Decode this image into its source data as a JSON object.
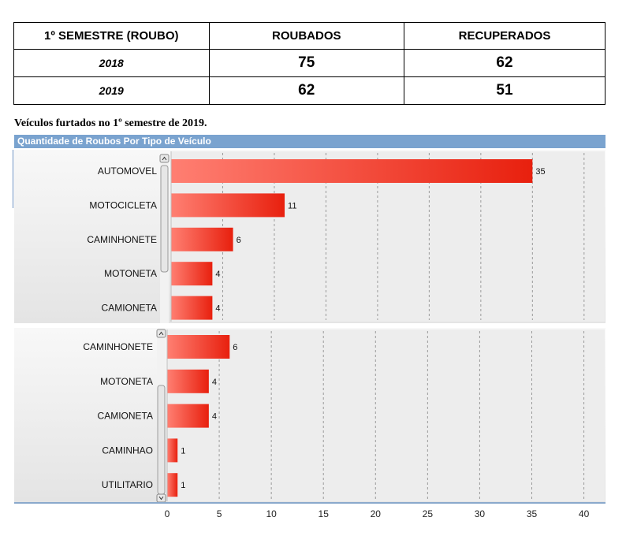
{
  "summary_table": {
    "headers": [
      "1º SEMESTRE (ROUBO)",
      "ROUBADOS",
      "RECUPERADOS"
    ],
    "rows": [
      {
        "year": "2018",
        "roubados": "75",
        "recuperados": "62"
      },
      {
        "year": "2019",
        "roubados": "62",
        "recuperados": "51"
      }
    ]
  },
  "caption": "Veículos furtados no 1º semestre de 2019.",
  "colors": {
    "bar_start": "#ff7f72",
    "bar_end": "#e8200e",
    "header": "#7aa3cf",
    "panel_bg": "#ececec"
  },
  "chart_data": [
    {
      "type": "bar",
      "orientation": "horizontal",
      "title": "Quantidade de Roubos Por Tipo de Veículo",
      "categories": [
        "AUTOMOVEL",
        "MOTOCICLETA",
        "CAMINHONETE",
        "MOTONETA",
        "CAMIONETA"
      ],
      "values": [
        35,
        11,
        6,
        4,
        4
      ],
      "xlim": [
        0,
        42
      ],
      "grid": true
    },
    {
      "type": "bar",
      "orientation": "horizontal",
      "categories": [
        "CAMINHONETE",
        "MOTONETA",
        "CAMIONETA",
        "CAMINHAO",
        "UTILITARIO"
      ],
      "values": [
        6,
        4,
        4,
        1,
        1
      ],
      "xlim": [
        0,
        42
      ],
      "xticks": [
        0,
        5,
        10,
        15,
        20,
        25,
        30,
        35,
        40
      ],
      "grid": true
    }
  ]
}
